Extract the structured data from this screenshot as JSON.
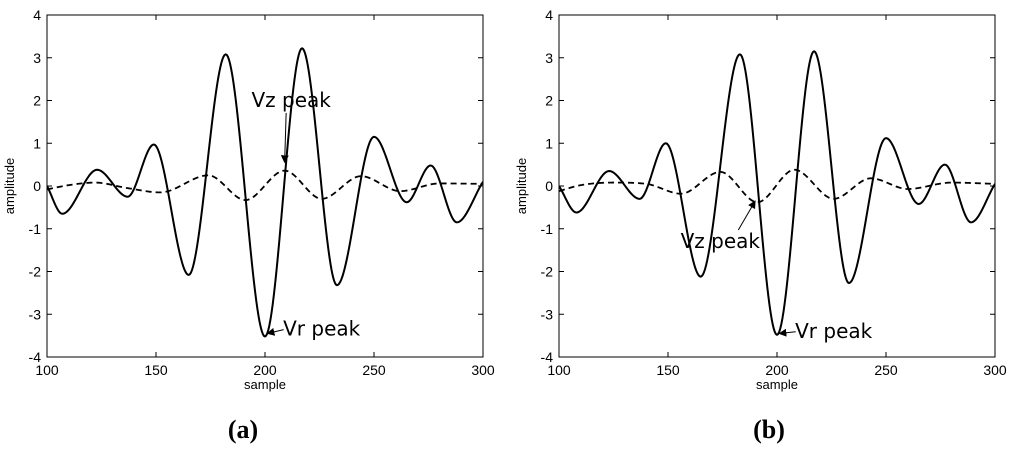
{
  "chart_data": [
    {
      "type": "line",
      "panel_label": "(a)",
      "xlabel": "sample",
      "ylabel": "amplitude",
      "xlim": [
        100,
        300
      ],
      "ylim": [
        -4,
        4
      ],
      "xticks": [
        100,
        150,
        200,
        250,
        300
      ],
      "yticks": [
        -4,
        -3,
        -2,
        -1,
        0,
        1,
        2,
        3,
        4
      ],
      "grid": false,
      "series": [
        {
          "style": "solid",
          "x": [
            100,
            107,
            123,
            137,
            149,
            165,
            182,
            200,
            217,
            233,
            250,
            265,
            276,
            288,
            300
          ],
          "y": [
            0,
            -0.65,
            0.38,
            -0.25,
            0.97,
            -2.08,
            3.08,
            -3.52,
            3.22,
            -2.32,
            1.15,
            -0.38,
            0.48,
            -0.85,
            0.1
          ]
        },
        {
          "style": "dashed",
          "x": [
            100,
            110,
            122,
            137,
            152,
            174,
            191,
            209,
            226,
            244,
            262,
            280,
            300
          ],
          "y": [
            -0.08,
            0.02,
            0.08,
            -0.05,
            -0.15,
            0.25,
            -0.33,
            0.36,
            -0.3,
            0.23,
            -0.12,
            0.06,
            0.05
          ]
        }
      ],
      "annotations": [
        {
          "text": "Vz peak",
          "x": 212,
          "y": 1.85,
          "arrow_to": [
            209,
            0.55
          ]
        },
        {
          "text": "Vr peak",
          "x": 226,
          "y": -3.5,
          "arrow_to": [
            201,
            -3.45
          ]
        }
      ]
    },
    {
      "type": "line",
      "panel_label": "(b)",
      "xlabel": "sample",
      "ylabel": "amplitude",
      "xlim": [
        100,
        300
      ],
      "ylim": [
        -4,
        4
      ],
      "xticks": [
        100,
        150,
        200,
        250,
        300
      ],
      "yticks": [
        -4,
        -3,
        -2,
        -1,
        0,
        1,
        2,
        3,
        4
      ],
      "grid": false,
      "series": [
        {
          "style": "solid",
          "x": [
            100,
            108,
            123,
            137,
            149,
            165,
            183,
            200,
            217,
            233,
            250,
            265,
            277,
            289,
            300
          ],
          "y": [
            0,
            -0.62,
            0.35,
            -0.3,
            1.0,
            -2.12,
            3.08,
            -3.48,
            3.15,
            -2.27,
            1.12,
            -0.42,
            0.5,
            -0.85,
            0.05
          ]
        },
        {
          "style": "dashed",
          "x": [
            100,
            110,
            125,
            140,
            156,
            174,
            191,
            208,
            226,
            243,
            260,
            280,
            300
          ],
          "y": [
            -0.12,
            0.02,
            0.08,
            0.05,
            -0.18,
            0.33,
            -0.38,
            0.38,
            -0.3,
            0.18,
            -0.07,
            0.08,
            0.05
          ]
        }
      ],
      "annotations": [
        {
          "text": "Vz peak",
          "x": 174,
          "y": -1.45,
          "arrow_to": [
            190,
            -0.35
          ]
        },
        {
          "text": "Vr peak",
          "x": 226,
          "y": -3.55,
          "arrow_to": [
            201,
            -3.45
          ]
        }
      ]
    }
  ]
}
